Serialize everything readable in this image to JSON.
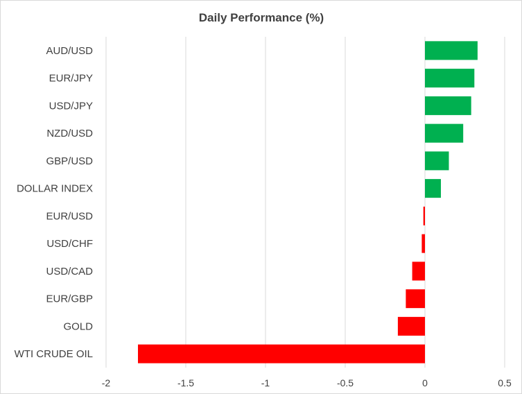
{
  "chart_data": {
    "type": "bar",
    "orientation": "horizontal",
    "title": "Daily Performance (%)",
    "xlabel": "",
    "ylabel": "",
    "categories": [
      "AUD/USD",
      "EUR/JPY",
      "USD/JPY",
      "NZD/USD",
      "GBP/USD",
      "DOLLAR INDEX",
      "EUR/USD",
      "USD/CHF",
      "USD/CAD",
      "EUR/GBP",
      "GOLD",
      "WTI CRUDE OIL"
    ],
    "values": [
      0.33,
      0.31,
      0.29,
      0.24,
      0.15,
      0.1,
      -0.01,
      -0.02,
      -0.08,
      -0.12,
      -0.17,
      -1.8
    ],
    "xlim": [
      -2,
      0.5
    ],
    "xticks": [
      -2,
      -1.5,
      -1,
      -0.5,
      0,
      0.5
    ],
    "xtick_labels": [
      "-2",
      "-1.5",
      "-1",
      "-0.5",
      "0",
      "0.5"
    ],
    "grid": true,
    "legend": "none",
    "colors": {
      "positive": "#00b050",
      "negative": "#ff0000",
      "grid": "#d9d9d9",
      "text": "#404040"
    }
  }
}
